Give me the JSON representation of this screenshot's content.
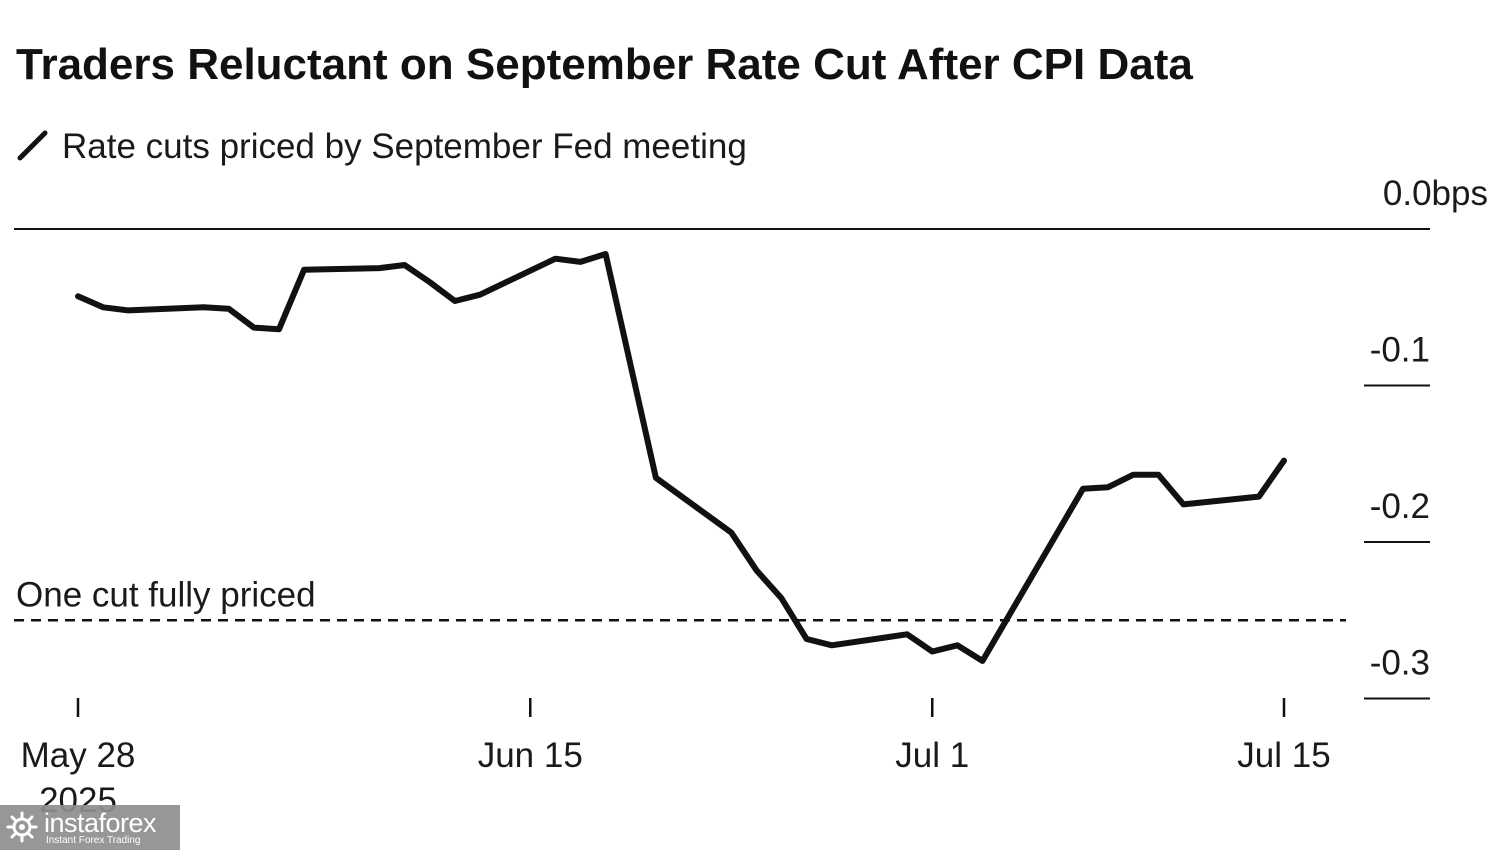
{
  "chart_data": {
    "type": "line",
    "title": "Traders Reluctant on September Rate Cut After CPI Data",
    "series": [
      {
        "name": "Rate cuts priced by September Fed meeting",
        "color": "#111111",
        "x": [
          "2025-05-28",
          "2025-05-29",
          "2025-05-30",
          "2025-06-02",
          "2025-06-03",
          "2025-06-04",
          "2025-06-05",
          "2025-06-06",
          "2025-06-09",
          "2025-06-10",
          "2025-06-11",
          "2025-06-12",
          "2025-06-13",
          "2025-06-16",
          "2025-06-17",
          "2025-06-18",
          "2025-06-20",
          "2025-06-23",
          "2025-06-24",
          "2025-06-25",
          "2025-06-26",
          "2025-06-27",
          "2025-06-30",
          "2025-07-01",
          "2025-07-02",
          "2025-07-03",
          "2025-07-07",
          "2025-07-08",
          "2025-07-09",
          "2025-07-10",
          "2025-07-11",
          "2025-07-14",
          "2025-07-15"
        ],
        "values": [
          -0.043,
          -0.05,
          -0.052,
          -0.05,
          -0.051,
          -0.063,
          -0.064,
          -0.026,
          -0.025,
          -0.023,
          -0.034,
          -0.046,
          -0.042,
          -0.019,
          -0.021,
          -0.016,
          -0.159,
          -0.194,
          -0.218,
          -0.236,
          -0.262,
          -0.266,
          -0.259,
          -0.27,
          -0.266,
          -0.276,
          -0.166,
          -0.165,
          -0.157,
          -0.157,
          -0.176,
          -0.171,
          -0.148
        ]
      }
    ],
    "y_axis": {
      "ticks": [
        0.0,
        -0.1,
        -0.2,
        -0.3
      ],
      "tick_labels": [
        "0.0bps",
        "-0.1",
        "-0.2",
        "-0.3"
      ],
      "ylim": [
        -0.31,
        0.0
      ],
      "position": "right"
    },
    "x_axis": {
      "ticks": [
        "2025-05-28",
        "2025-06-15",
        "2025-07-01",
        "2025-07-15"
      ],
      "tick_labels": [
        "May 28",
        "Jun 15",
        "Jul 1",
        "Jul 15"
      ],
      "year_label": "2025"
    },
    "reference_lines": [
      {
        "value": -0.25,
        "label": "One cut fully priced",
        "style": "dashed"
      }
    ],
    "legend": {
      "placement": "top-left"
    },
    "grid": false
  },
  "watermark": {
    "name": "instaforex",
    "tagline": "Instant Forex Trading",
    "icon": "instaforex-logo-icon"
  }
}
